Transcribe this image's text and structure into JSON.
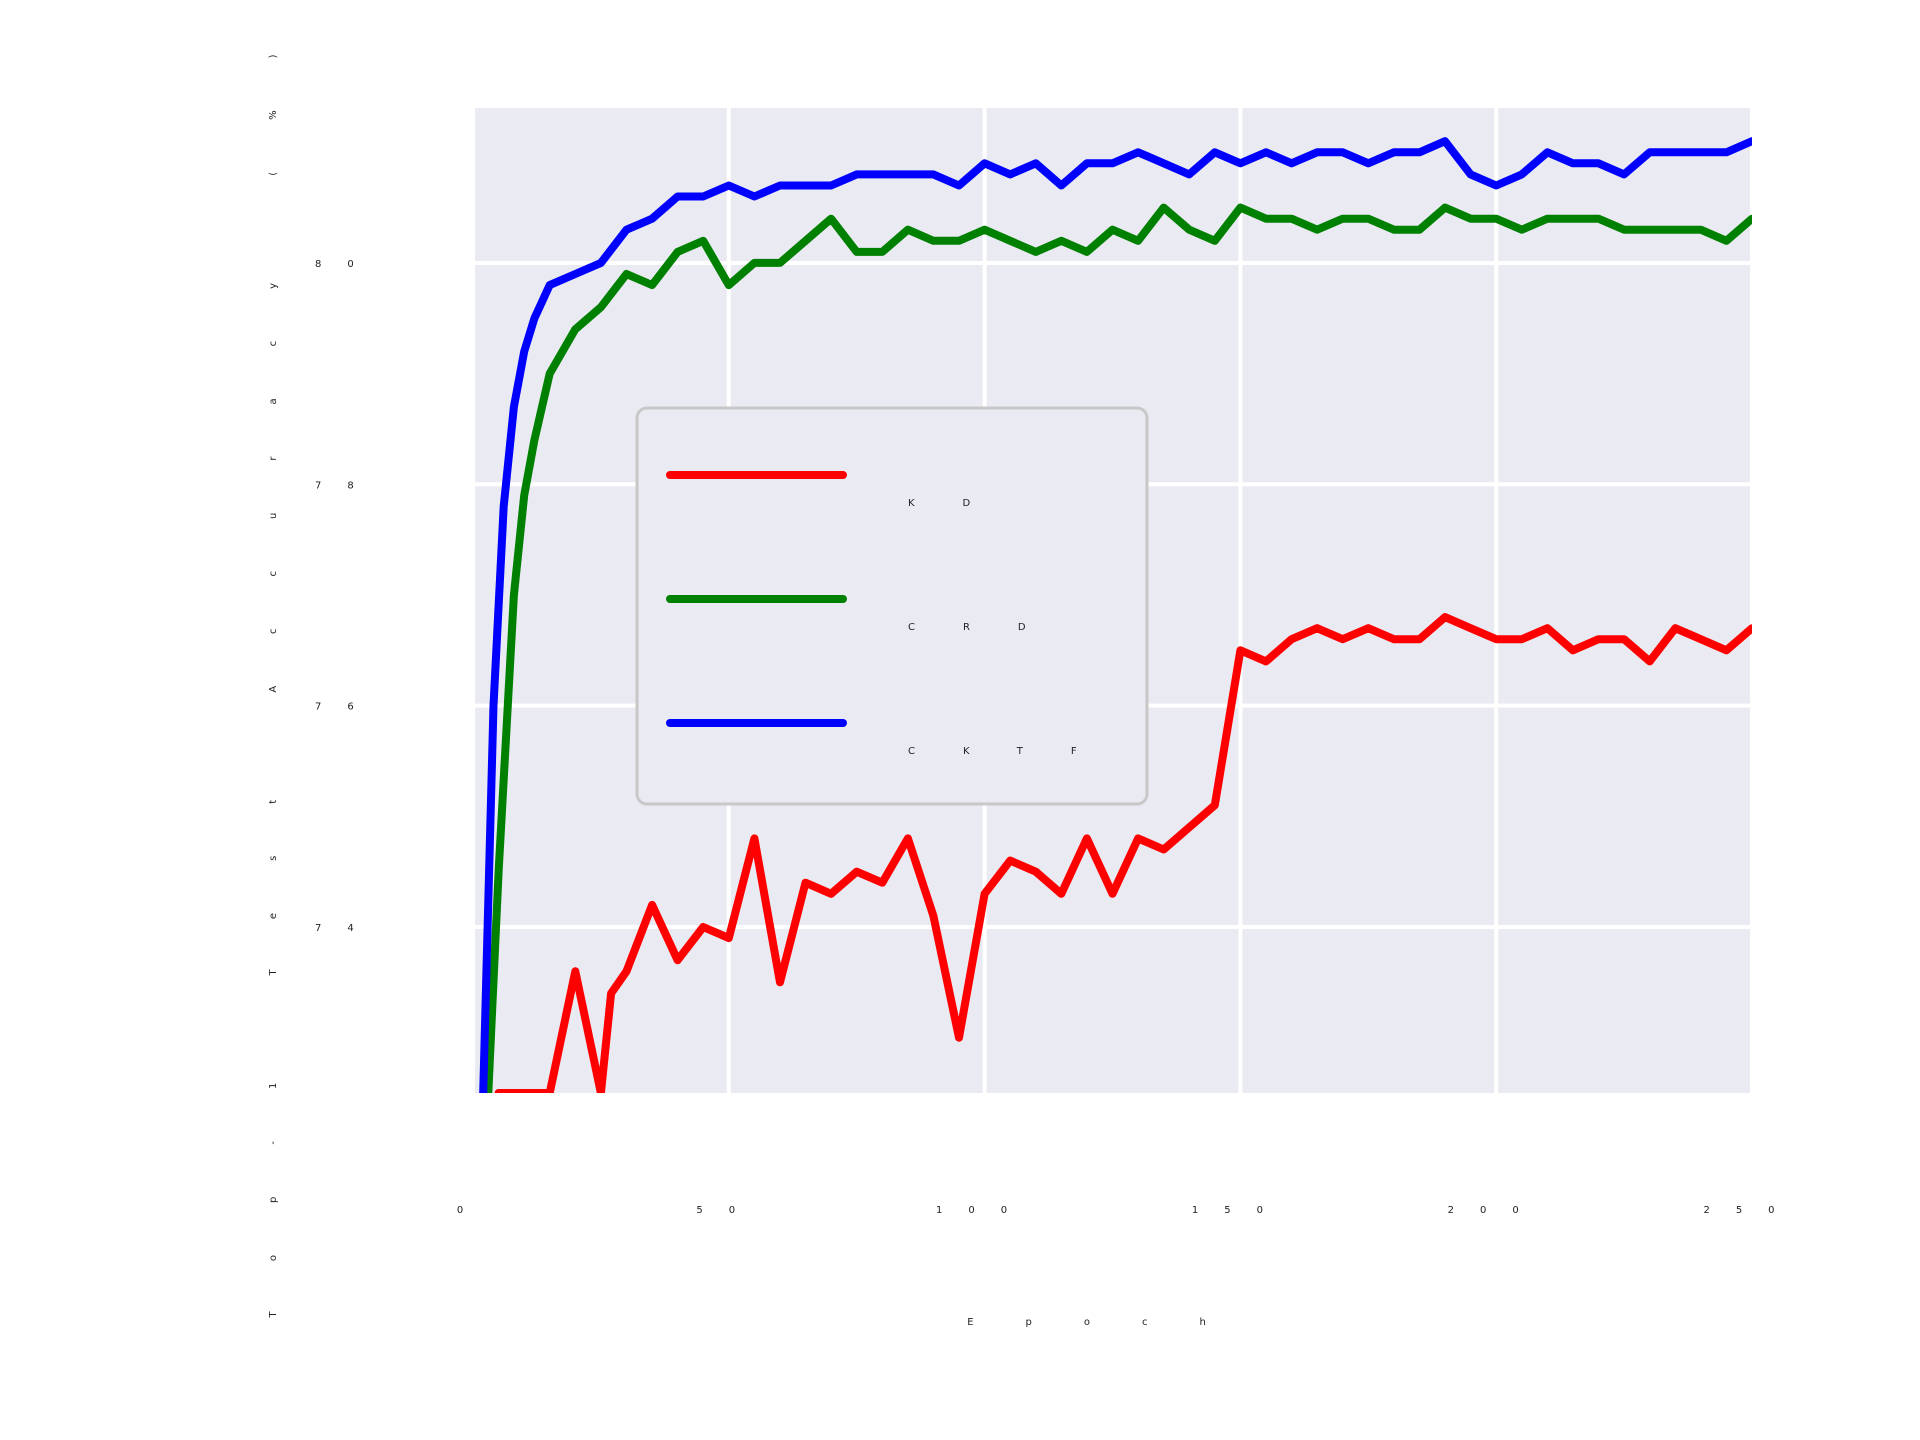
{
  "chart_data": {
    "type": "line",
    "title": "",
    "xlabel": "Epoch",
    "ylabel": "Top-1 Test Accuracy (%)",
    "xlim": [
      0,
      250
    ],
    "ylim": [
      72.5,
      81.4
    ],
    "x_ticks": [
      0,
      50,
      100,
      150,
      200,
      250
    ],
    "x_tick_labels": [
      "0",
      "50",
      "100",
      "150",
      "200",
      "250"
    ],
    "y_ticks": [
      74,
      76,
      78,
      80
    ],
    "y_tick_labels": [
      "74",
      "76",
      "78",
      "80"
    ],
    "grid": true,
    "background": "#eaeaf2",
    "legend_position": "center-left",
    "series": [
      {
        "name": "KD",
        "color": "#ff0000",
        "x": [
          5,
          15,
          20,
          25,
          27,
          30,
          35,
          40,
          45,
          50,
          55,
          60,
          65,
          70,
          75,
          80,
          85,
          90,
          95,
          100,
          105,
          110,
          115,
          120,
          125,
          130,
          135,
          140,
          145,
          150,
          155,
          160,
          165,
          170,
          175,
          180,
          185,
          190,
          195,
          200,
          205,
          210,
          215,
          220,
          225,
          230,
          235,
          240,
          245,
          250
        ],
        "y": [
          72.5,
          72.5,
          73.6,
          72.5,
          73.4,
          73.6,
          74.2,
          73.7,
          74.0,
          73.9,
          74.8,
          73.5,
          74.4,
          74.3,
          74.5,
          74.4,
          74.8,
          74.1,
          73.0,
          74.3,
          74.6,
          74.5,
          74.3,
          74.8,
          74.3,
          74.8,
          74.7,
          74.9,
          75.1,
          76.5,
          76.4,
          76.6,
          76.7,
          76.6,
          76.7,
          76.6,
          76.6,
          76.8,
          76.7,
          76.6,
          76.6,
          76.7,
          76.5,
          76.6,
          76.6,
          76.4,
          76.7,
          76.6,
          76.5,
          76.7
        ]
      },
      {
        "name": "CRD",
        "color": "#008000",
        "x": [
          3,
          5,
          8,
          10,
          12,
          15,
          20,
          25,
          30,
          35,
          40,
          45,
          50,
          55,
          60,
          65,
          70,
          75,
          80,
          85,
          90,
          95,
          100,
          105,
          110,
          115,
          120,
          125,
          130,
          135,
          140,
          145,
          150,
          155,
          160,
          165,
          170,
          175,
          180,
          185,
          190,
          195,
          200,
          205,
          210,
          215,
          220,
          225,
          230,
          235,
          240,
          245,
          250
        ],
        "y": [
          72.5,
          74.5,
          77.0,
          77.9,
          78.4,
          79.0,
          79.4,
          79.6,
          79.9,
          79.8,
          80.1,
          80.2,
          79.8,
          80.0,
          80.0,
          80.2,
          80.4,
          80.1,
          80.1,
          80.3,
          80.2,
          80.2,
          80.3,
          80.2,
          80.1,
          80.2,
          80.1,
          80.3,
          80.2,
          80.5,
          80.3,
          80.2,
          80.5,
          80.4,
          80.4,
          80.3,
          80.4,
          80.4,
          80.3,
          80.3,
          80.5,
          80.4,
          80.4,
          80.3,
          80.4,
          80.4,
          80.4,
          80.3,
          80.3,
          80.3,
          80.3,
          80.2,
          80.4
        ]
      },
      {
        "name": "CKTF",
        "color": "#0000ff",
        "x": [
          2,
          4,
          6,
          8,
          10,
          12,
          15,
          20,
          25,
          30,
          35,
          40,
          45,
          50,
          55,
          60,
          65,
          70,
          75,
          80,
          85,
          90,
          95,
          100,
          105,
          110,
          115,
          120,
          125,
          130,
          135,
          140,
          145,
          150,
          155,
          160,
          165,
          170,
          175,
          180,
          185,
          190,
          195,
          200,
          205,
          210,
          215,
          220,
          225,
          230,
          235,
          240,
          245,
          250
        ],
        "y": [
          72.5,
          76.0,
          77.8,
          78.7,
          79.2,
          79.5,
          79.8,
          79.9,
          80.0,
          80.3,
          80.4,
          80.6,
          80.6,
          80.7,
          80.6,
          80.7,
          80.7,
          80.7,
          80.8,
          80.8,
          80.8,
          80.8,
          80.7,
          80.9,
          80.8,
          80.9,
          80.7,
          80.9,
          80.9,
          81.0,
          80.9,
          80.8,
          81.0,
          80.9,
          81.0,
          80.9,
          81.0,
          81.0,
          80.9,
          81.0,
          81.0,
          81.1,
          80.8,
          80.7,
          80.8,
          81.0,
          80.9,
          80.9,
          80.8,
          81.0,
          81.0,
          81.0,
          81.0,
          81.1
        ]
      }
    ]
  }
}
